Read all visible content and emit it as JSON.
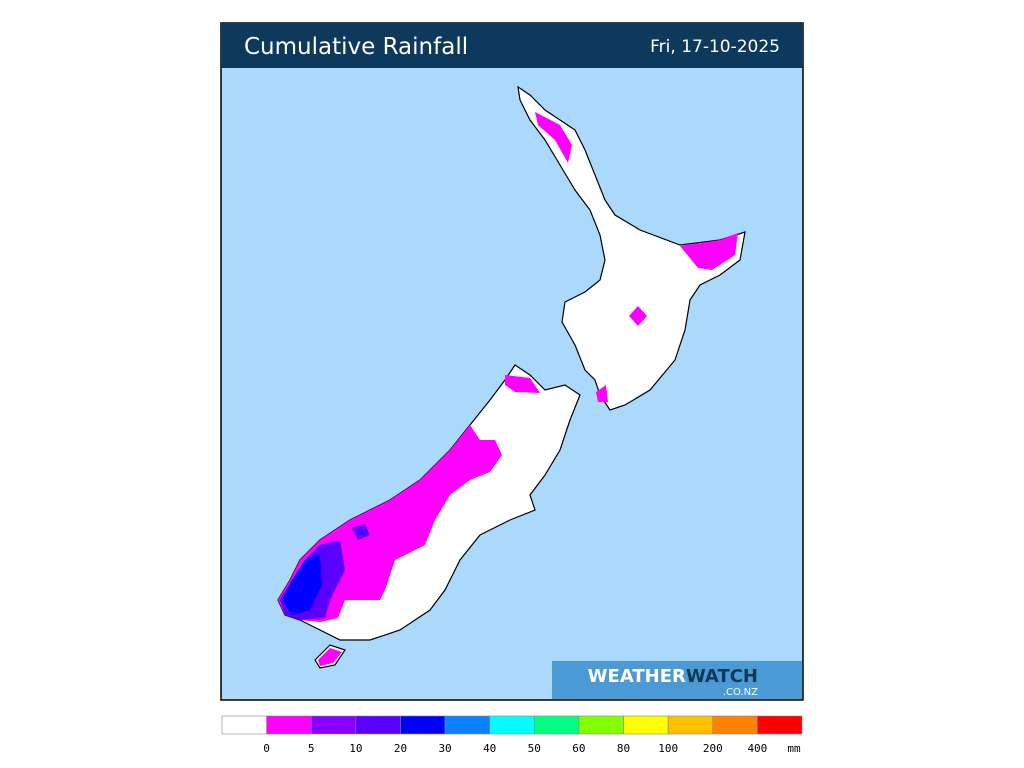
{
  "header": {
    "title": "Cumulative Rainfall",
    "date": "Fri, 17-10-2025"
  },
  "logo": {
    "word1": "WEATHER",
    "word2": "WATCH",
    "domain": ".CO.NZ"
  },
  "legend": {
    "colors": [
      "#ffffff",
      "#ff00ff",
      "#8a00ff",
      "#5a00ff",
      "#0000ff",
      "#0a82ff",
      "#00ffff",
      "#00ff82",
      "#82ff00",
      "#ffff00",
      "#ffc000",
      "#ff8200",
      "#ff0000"
    ],
    "labels": [
      0,
      5,
      10,
      20,
      30,
      40,
      50,
      60,
      80,
      100,
      200,
      400
    ],
    "unit": "mm"
  }
}
